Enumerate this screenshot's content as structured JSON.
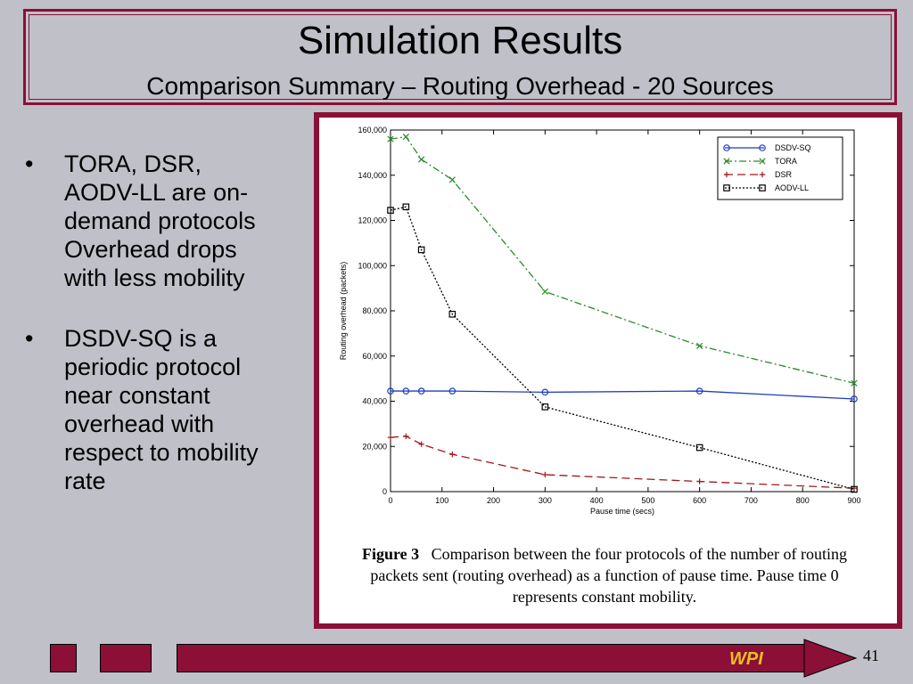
{
  "slide": {
    "title": "Simulation Results",
    "subtitle": "Comparison Summary – Routing Overhead - 20 Sources",
    "bullets": [
      {
        "marker": "•",
        "text": "TORA, DSR,\nAODV-LL are on-\ndemand protocols\nOverhead drops\nwith less mobility"
      },
      {
        "marker": "•",
        "text": "DSDV-SQ is a\nperiodic protocol\nnear constant\noverhead with\nrespect to mobility\nrate"
      }
    ],
    "footer_logo": "WPI",
    "page_number": "41",
    "accent_color": "#8b0f36"
  },
  "caption": {
    "label": "Figure 3",
    "text": "Comparison between the four protocols of the number of routing packets sent (routing overhead) as a function of pause time. Pause time 0 represents constant mobility."
  },
  "chart_data": {
    "type": "line",
    "xlabel": "Pause time (secs)",
    "ylabel": "Routing overhead (packets)",
    "xlim": [
      0,
      900
    ],
    "ylim": [
      0,
      160000
    ],
    "xticks": [
      0,
      100,
      200,
      300,
      400,
      500,
      600,
      700,
      800,
      900
    ],
    "yticks": [
      0,
      20000,
      40000,
      60000,
      80000,
      100000,
      120000,
      140000,
      160000
    ],
    "ytick_labels": [
      "0",
      "20,000",
      "40,000",
      "60,000",
      "80,000",
      "100,000",
      "120,000",
      "140,000",
      "160,000"
    ],
    "legend_position": "top-right",
    "grid": false,
    "series": [
      {
        "name": "DSDV-SQ",
        "color": "#1f3fbf",
        "dash": "",
        "marker": "o",
        "x": [
          0,
          30,
          60,
          120,
          300,
          600,
          900
        ],
        "y": [
          44500,
          44500,
          44500,
          44500,
          44000,
          44500,
          41000
        ]
      },
      {
        "name": "TORA",
        "color": "#2a8a2a",
        "dash": "8,3,2,3",
        "marker": "x",
        "x": [
          0,
          30,
          60,
          120,
          300,
          600,
          900
        ],
        "y": [
          156000,
          157000,
          147000,
          138000,
          88500,
          64500,
          48000
        ]
      },
      {
        "name": "DSR",
        "color": "#a01818",
        "dash": "9,5",
        "marker": "+",
        "x": [
          0,
          30,
          60,
          120,
          300,
          600,
          900
        ],
        "y": [
          24000,
          24500,
          21000,
          16500,
          7500,
          4500,
          1500
        ]
      },
      {
        "name": "AODV-LL",
        "color": "#000000",
        "dash": "2,2",
        "marker": "s",
        "x": [
          0,
          30,
          60,
          120,
          300,
          600,
          900
        ],
        "y": [
          124500,
          126000,
          107000,
          78500,
          37500,
          19500,
          1000
        ]
      }
    ]
  }
}
